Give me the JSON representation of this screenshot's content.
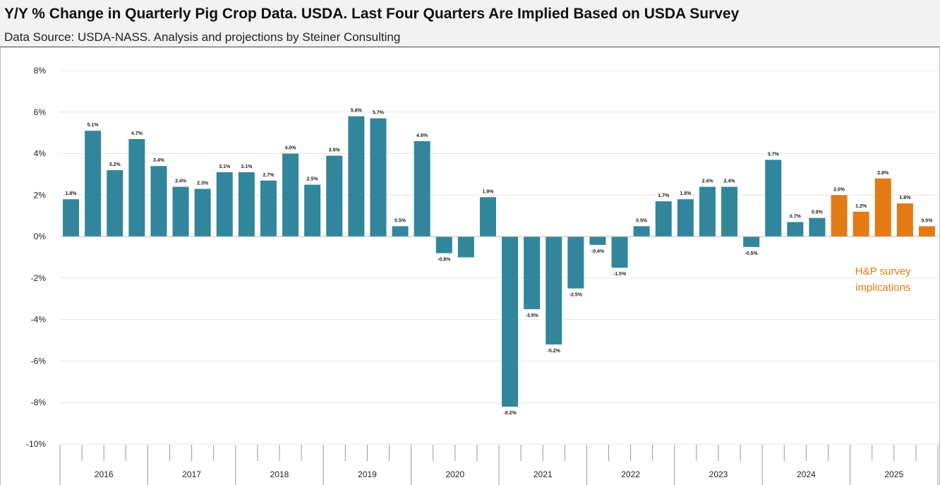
{
  "header": {
    "title": "Y/Y % Change in Quarterly Pig Crop Data.  USDA. Last Four Quarters Are Implied Based on USDA Survey",
    "subtitle": "Data Source:  USDA-NASS.  Analysis and projections by Steiner Consulting"
  },
  "chart_data": {
    "type": "bar",
    "title": "Y/Y % Change in Quarterly Pig Crop Data.  USDA. Last Four Quarters Are Implied Based on USDA Survey",
    "subtitle": "Data Source:  USDA-NASS.  Analysis and projections by Steiner Consulting",
    "xlabel": "",
    "ylabel": "",
    "ylim": [
      -10,
      8
    ],
    "yticks": [
      8,
      6,
      4,
      2,
      0,
      -2,
      -4,
      -6,
      -8,
      -10
    ],
    "ytick_labels": [
      "8%",
      "6%",
      "4%",
      "2%",
      "0%",
      "-2%",
      "-4%",
      "-6%",
      "-8%",
      "-10%"
    ],
    "grid": true,
    "years": [
      "2016",
      "2017",
      "2018",
      "2019",
      "2020",
      "2021",
      "2022",
      "2023",
      "2024",
      "2025"
    ],
    "quarters_per_year": 4,
    "values": [
      1.8,
      5.1,
      3.2,
      4.7,
      3.4,
      2.4,
      2.3,
      3.1,
      3.1,
      2.7,
      4.0,
      2.5,
      3.9,
      5.8,
      5.7,
      0.5,
      4.6,
      -0.8,
      -1.0,
      1.9,
      -8.2,
      -3.5,
      -5.2,
      -2.5,
      -0.4,
      -1.5,
      0.5,
      1.7,
      1.8,
      2.4,
      2.4,
      -0.5,
      3.7,
      0.7,
      0.9,
      2.0,
      1.2,
      2.8,
      1.6,
      0.5
    ],
    "labels": [
      "1.8%",
      "5.1%",
      "3.2%",
      "4.7%",
      "3.4%",
      "2.4%",
      "2.3%",
      "3.1%",
      "3.1%",
      "2.7%",
      "4.0%",
      "2.5%",
      "3.9%",
      "5.8%",
      "5.7%",
      "0.5%",
      "4.6%",
      "-0.8%",
      "",
      "1.9%",
      "-8.2%",
      "-3.5%",
      "-5.2%",
      "-2.5%",
      "-0.4%",
      "-1.5%",
      "0.5%",
      "1.7%",
      "1.8%",
      "2.4%",
      "2.4%",
      "-0.5%",
      "3.7%",
      "0.7%",
      "0.9%",
      "2.0%",
      "1.2%",
      "2.8%",
      "1.6%",
      "0.5%"
    ],
    "implied_from_index": 35,
    "colors": {
      "actual": "#31869b",
      "implied": "#e47a14",
      "grid": "#e4e4e4",
      "axis": "#999999"
    },
    "annotation": {
      "lines": [
        "H&P survey",
        "implications"
      ]
    }
  }
}
